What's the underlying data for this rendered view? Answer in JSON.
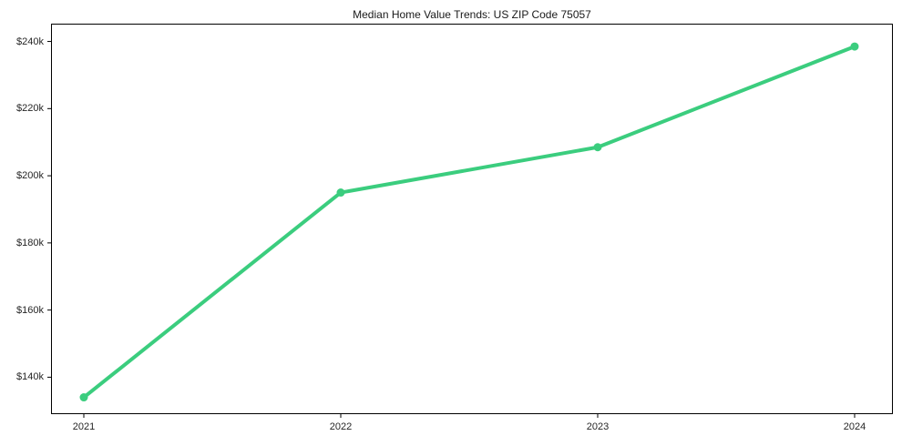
{
  "chart_data": {
    "type": "line",
    "title": "Median Home Value Trends: US ZIP Code 75057",
    "categories": [
      "2021",
      "2022",
      "2023",
      "2024"
    ],
    "values": [
      134000,
      195000,
      208500,
      238500
    ],
    "xlabel": "",
    "ylabel": "",
    "ylim": [
      129000,
      245300
    ],
    "yticks": [
      140000,
      160000,
      180000,
      200000,
      220000,
      240000
    ],
    "ytick_labels": [
      "$140k",
      "$160k",
      "$180k",
      "$200k",
      "$220k",
      "$240k"
    ],
    "grid": false,
    "legend": "none",
    "marker": "circle"
  },
  "colors": {
    "line": "#3bcd7e",
    "spine": "#000000",
    "tick_text": "#262626",
    "title_text": "#1a1a1a",
    "background": "#ffffff"
  }
}
